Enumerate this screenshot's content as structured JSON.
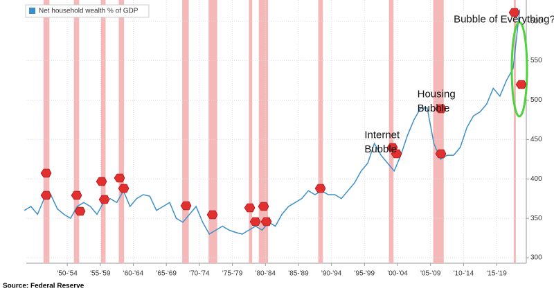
{
  "chart_data": {
    "type": "line",
    "legend": "Net household wealth % of GDP",
    "source": "Source:  Federal Reserve",
    "annotations": [
      {
        "text": "Internet",
        "x": 1997.5,
        "y": 455
      },
      {
        "text": "Bubble",
        "x": 1997.5,
        "y": 437
      },
      {
        "text": "Housing",
        "x": 2005.5,
        "y": 507
      },
      {
        "text": "Bubble",
        "x": 2005.5,
        "y": 489
      },
      {
        "text": "Bubble of Everything?",
        "x": 2011,
        "y": 602
      }
    ],
    "series": [
      {
        "name": "Net household wealth % of GDP",
        "color": "#3b8fc8",
        "x": [
          1946,
          1947,
          1948,
          1949,
          1950,
          1951,
          1952,
          1953,
          1954,
          1955,
          1956,
          1957,
          1958,
          1959,
          1960,
          1961,
          1962,
          1963,
          1964,
          1965,
          1966,
          1967,
          1968,
          1969,
          1970,
          1971,
          1972,
          1973,
          1974,
          1975,
          1976,
          1977,
          1978,
          1979,
          1980,
          1981,
          1982,
          1983,
          1984,
          1985,
          1986,
          1987,
          1988,
          1989,
          1990,
          1991,
          1992,
          1993,
          1994,
          1995,
          1996,
          1997,
          1998,
          1999,
          2000,
          2001,
          2002,
          2003,
          2004,
          2005,
          2006,
          2007,
          2008,
          2009,
          2010,
          2011,
          2012,
          2013,
          2014,
          2015,
          2016,
          2017,
          2018,
          2019,
          2020,
          2021
        ],
        "values": [
          360,
          365,
          355,
          375,
          380,
          362,
          355,
          350,
          365,
          370,
          365,
          355,
          370,
          375,
          370,
          385,
          365,
          375,
          380,
          378,
          360,
          365,
          370,
          350,
          345,
          355,
          365,
          345,
          330,
          335,
          340,
          335,
          332,
          330,
          335,
          340,
          335,
          345,
          340,
          355,
          365,
          370,
          375,
          385,
          380,
          385,
          380,
          380,
          375,
          385,
          395,
          410,
          420,
          445,
          430,
          420,
          410,
          430,
          455,
          475,
          490,
          490,
          445,
          425,
          430,
          430,
          440,
          465,
          480,
          485,
          495,
          515,
          505,
          525,
          540,
          615
        ]
      }
    ],
    "bands": [
      [
        1948.9,
        1949.8
      ],
      [
        1953.5,
        1954.3
      ],
      [
        1957.6,
        1958.3
      ],
      [
        1960.3,
        1961.1
      ],
      [
        1969.9,
        1970.9
      ],
      [
        1973.9,
        1975.2
      ],
      [
        1980.0,
        1980.5
      ],
      [
        1981.5,
        1982.9
      ],
      [
        1990.5,
        1991.2
      ],
      [
        2001.2,
        2001.9
      ],
      [
        2007.9,
        2009.5
      ],
      [
        2020.1,
        2020.4
      ]
    ],
    "band_color": "#f4b8b8",
    "xlim": [
      1946.3,
      2022
    ],
    "xticks": [
      {
        "value": 1952.5,
        "label": "'50-'54"
      },
      {
        "value": 1957.5,
        "label": "'55-'59"
      },
      {
        "value": 1962.5,
        "label": "'60-'64"
      },
      {
        "value": 1967.5,
        "label": "'65-'69"
      },
      {
        "value": 1972.5,
        "label": "'70-'74"
      },
      {
        "value": 1977.5,
        "label": "'75-'79"
      },
      {
        "value": 1982.5,
        "label": "'80-'84"
      },
      {
        "value": 1987.5,
        "label": "'85-'89"
      },
      {
        "value": 1992.5,
        "label": "'90-'94"
      },
      {
        "value": 1997.5,
        "label": "'95-'99"
      },
      {
        "value": 2002.5,
        "label": "'00-'04"
      },
      {
        "value": 2007.5,
        "label": "'05-'09"
      },
      {
        "value": 2012.5,
        "label": "'10-'14"
      },
      {
        "value": 2017.5,
        "label": "'15-'19"
      }
    ],
    "ylim": [
      293,
      627
    ],
    "yticks": [
      300,
      350,
      400,
      450,
      500,
      550,
      600
    ],
    "grid": true
  }
}
